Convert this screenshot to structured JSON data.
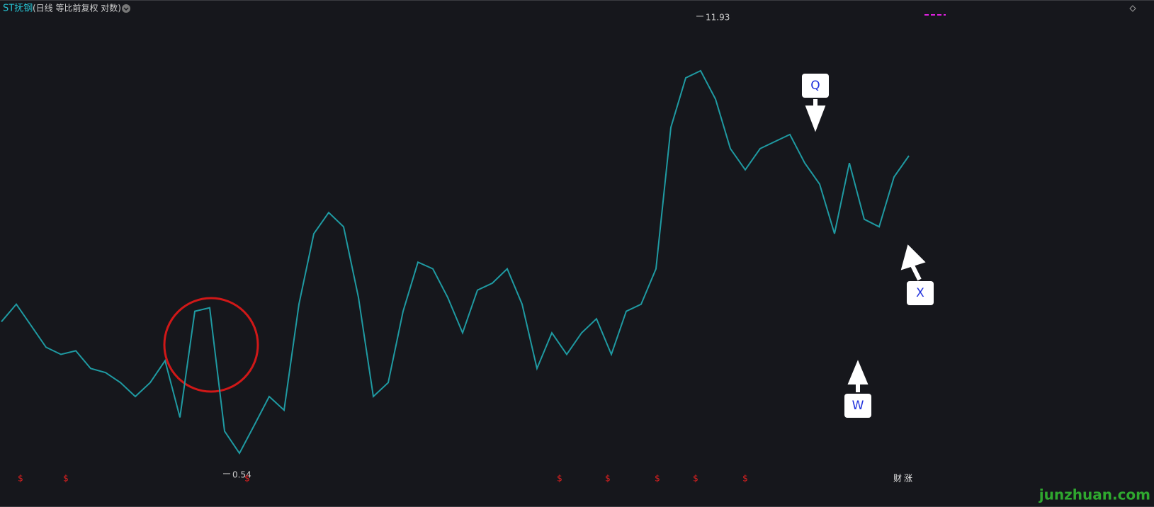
{
  "chart_data": {
    "type": "line",
    "title": "ST抚钢",
    "subtitle": "(日线 等比前复权 对数)",
    "log_scale": true,
    "ylim": [
      0.5,
      13
    ],
    "color": "#1f9aa2",
    "values": [
      1.51,
      1.7,
      1.47,
      1.27,
      1.21,
      1.24,
      1.1,
      1.07,
      1.0,
      0.91,
      1.0,
      1.16,
      0.79,
      1.62,
      1.66,
      0.72,
      0.62,
      0.75,
      0.91,
      0.83,
      1.7,
      2.74,
      3.16,
      2.87,
      1.78,
      0.91,
      1.0,
      1.62,
      2.26,
      2.16,
      1.78,
      1.4,
      1.87,
      1.96,
      2.16,
      1.7,
      1.1,
      1.4,
      1.21,
      1.4,
      1.54,
      1.21,
      1.62,
      1.7,
      2.16,
      5.62,
      7.86,
      8.25,
      6.81,
      4.87,
      4.22,
      4.87,
      5.11,
      5.36,
      4.42,
      3.83,
      2.74,
      4.42,
      3.02,
      2.87,
      4.02,
      4.64
    ],
    "high_label": 11.93,
    "low_label": 0.54,
    "callouts": [
      "Q",
      "W",
      "X"
    ],
    "event_markers": [
      "$",
      "$",
      "$",
      "$",
      "$",
      "$",
      "$",
      "$",
      "财",
      "涨"
    ],
    "watermark": "junzhuan.com"
  }
}
